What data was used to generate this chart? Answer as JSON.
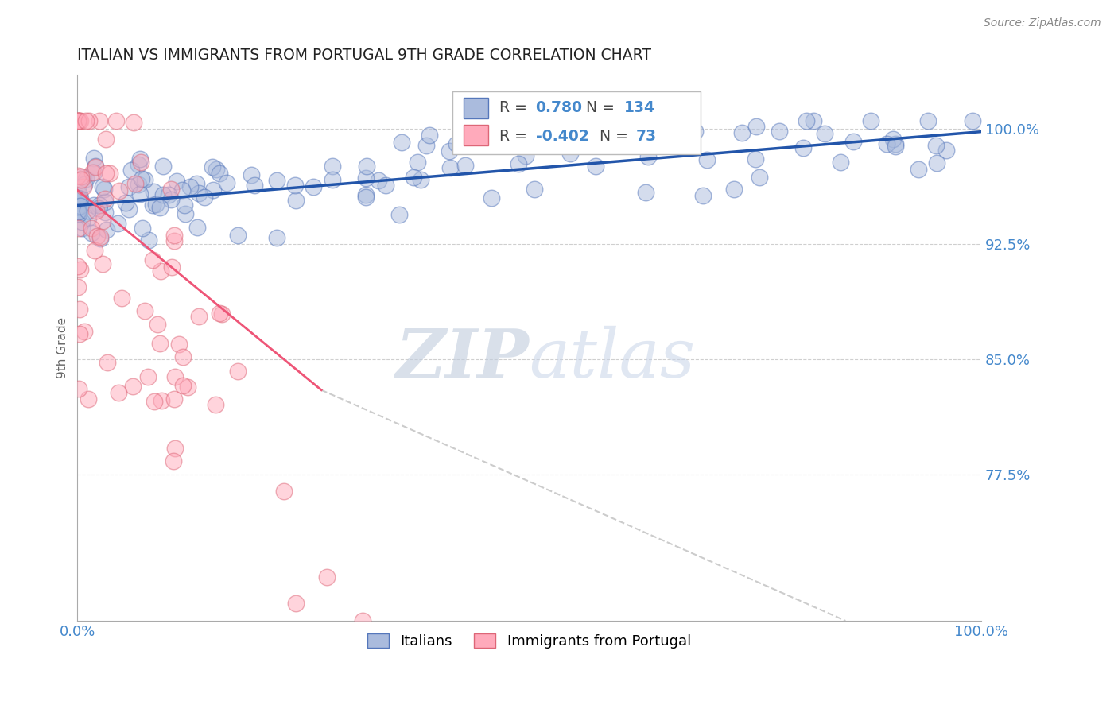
{
  "title": "ITALIAN VS IMMIGRANTS FROM PORTUGAL 9TH GRADE CORRELATION CHART",
  "source_text": "Source: ZipAtlas.com",
  "ylabel": "9th Grade",
  "x_lim": [
    0.0,
    1.0
  ],
  "y_lim": [
    0.68,
    1.035
  ],
  "y_ticks": [
    0.775,
    0.85,
    0.925,
    1.0
  ],
  "y_tick_labels": [
    "77.5%",
    "85.0%",
    "92.5%",
    "100.0%"
  ],
  "legend_r_blue_val": "0.780",
  "legend_n_blue_val": "134",
  "legend_r_pink_val": "-0.402",
  "legend_n_pink_val": "73",
  "blue_fill": "#aabbdd",
  "blue_edge": "#5577bb",
  "pink_fill": "#ffaabb",
  "pink_edge": "#dd6677",
  "blue_line_color": "#2255aa",
  "pink_line_color": "#ee5577",
  "grid_color": "#bbbbbb",
  "axis_label_color": "#4488cc",
  "title_color": "#222222",
  "watermark_zip_color": "#c0ccdd",
  "watermark_atlas_color": "#c8d4e8",
  "legend_label_blue": "Italians",
  "legend_label_pink": "Immigrants from Portugal",
  "n_blue": 134,
  "n_pink": 73,
  "blue_r": 0.78,
  "pink_r": -0.402,
  "blue_seed": 42,
  "pink_seed": 99
}
